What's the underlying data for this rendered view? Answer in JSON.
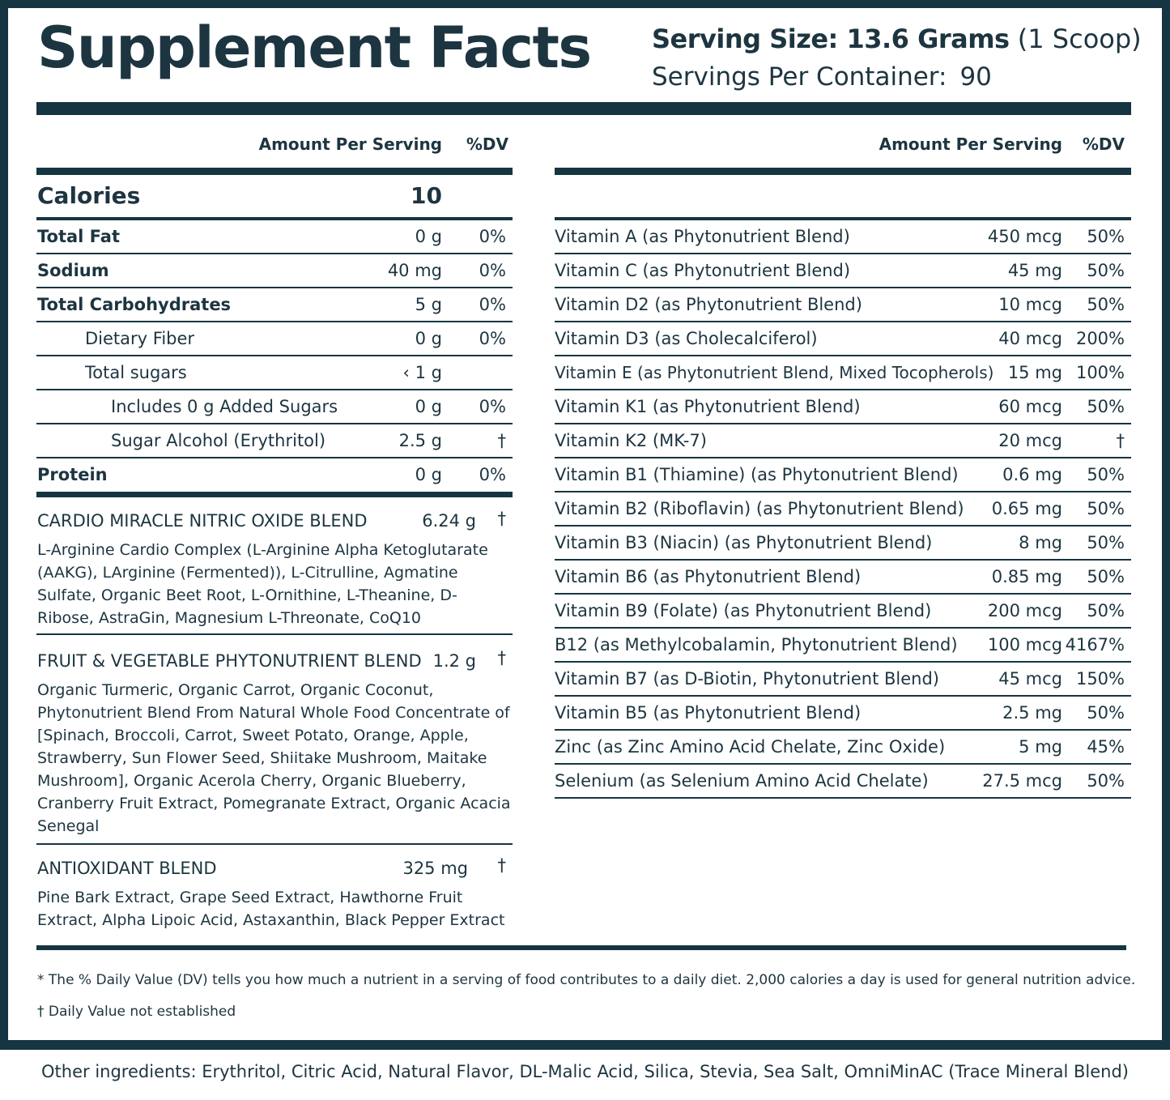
{
  "header": {
    "title": "Supplement Facts",
    "serving_size_label": "Serving Size: 13.6 Grams",
    "serving_size_note": "(1 Scoop)",
    "servings_label": "Servings Per Container:",
    "servings_value": "90"
  },
  "columns": {
    "amount": "Amount Per Serving",
    "dv": "%DV"
  },
  "calories": {
    "label": "Calories",
    "value": "10"
  },
  "left_rows": [
    {
      "name": "Total Fat",
      "amount": "0 g",
      "dv": "0%"
    },
    {
      "name": "Sodium",
      "amount": "40 mg",
      "dv": "0%"
    },
    {
      "name": "Total Carbohydrates",
      "amount": "5 g",
      "dv": "0%"
    },
    {
      "name": "Dietary Fiber",
      "amount": "0 g",
      "dv": "0%"
    },
    {
      "name": "Total sugars",
      "amount": "‹ 1 g",
      "dv": ""
    },
    {
      "name": "Includes 0 g Added Sugars",
      "amount": "0 g",
      "dv": "0%"
    },
    {
      "name": "Sugar Alcohol (Erythritol)",
      "amount": "2.5 g",
      "dv": "†"
    },
    {
      "name": "Protein",
      "amount": "0 g",
      "dv": "0%"
    }
  ],
  "blends": [
    {
      "name": "CARDIO MIRACLE NITRIC OXIDE BLEND",
      "amount": "6.24 g",
      "dv": "†",
      "ingredients": "L-Arginine Cardio Complex (L-Arginine Alpha Ketoglutarate (AAKG), LArginine (Fermented)), L-Citrulline, Agmatine Sulfate, Organic Beet Root, L-Ornithine, L-Theanine, D-Ribose, AstraGin, Magnesium L-Threonate, CoQ10"
    },
    {
      "name": "FRUIT & VEGETABLE PHYTONUTRIENT BLEND",
      "amount": "1.2 g",
      "dv": "†",
      "ingredients": "Organic Turmeric, Organic Carrot, Organic Coconut, Phytonutrient Blend From Natural Whole Food Concentrate of [Spinach, Broccoli, Carrot, Sweet Potato, Orange, Apple, Strawberry, Sun Flower Seed, Shiitake Mushroom, Maitake Mushroom], Organic Acerola Cherry, Organic Blueberry, Cranberry Fruit Extract, Pomegranate Extract, Organic Acacia Senegal"
    },
    {
      "name": "ANTIOXIDANT BLEND",
      "amount": "325 mg",
      "dv": "†",
      "ingredients": "Pine Bark Extract, Grape Seed Extract, Hawthorne Fruit Extract, Alpha Lipoic Acid, Astaxanthin, Black Pepper Extract"
    }
  ],
  "right_rows": [
    {
      "name": "Vitamin A (as Phytonutrient Blend)",
      "amount": "450 mcg",
      "dv": "50%"
    },
    {
      "name": "Vitamin C (as Phytonutrient Blend)",
      "amount": "45 mg",
      "dv": "50%"
    },
    {
      "name": "Vitamin D2 (as Phytonutrient Blend)",
      "amount": "10 mcg",
      "dv": "50%"
    },
    {
      "name": "Vitamin D3 (as Cholecalciferol)",
      "amount": "40 mcg",
      "dv": "200%"
    },
    {
      "name": "Vitamin E (as Phytonutrient Blend, Mixed Tocopherols)",
      "amount": "15 mg",
      "dv": "100%"
    },
    {
      "name": "Vitamin K1 (as Phytonutrient Blend)",
      "amount": "60 mcg",
      "dv": "50%"
    },
    {
      "name": "Vitamin K2 (MK-7)",
      "amount": "20 mcg",
      "dv": "†"
    },
    {
      "name": "Vitamin B1 (Thiamine) (as Phytonutrient Blend)",
      "amount": "0.6 mg",
      "dv": "50%"
    },
    {
      "name": "Vitamin B2 (Riboflavin) (as Phytonutrient Blend)",
      "amount": "0.65 mg",
      "dv": "50%"
    },
    {
      "name": "Vitamin B3 (Niacin) (as Phytonutrient Blend)",
      "amount": "8 mg",
      "dv": "50%"
    },
    {
      "name": "Vitamin B6 (as Phytonutrient Blend)",
      "amount": "0.85 mg",
      "dv": "50%"
    },
    {
      "name": "Vitamin B9 (Folate) (as Phytonutrient Blend)",
      "amount": "200 mcg",
      "dv": "50%"
    },
    {
      "name": "B12 (as Methylcobalamin, Phytonutrient Blend)",
      "amount": "100 mcg",
      "dv": "4167%"
    },
    {
      "name": "Vitamin B7 (as D-Biotin, Phytonutrient Blend)",
      "amount": "45 mcg",
      "dv": "150%"
    },
    {
      "name": "Vitamin B5 (as Phytonutrient Blend)",
      "amount": "2.5 mg",
      "dv": "50%"
    },
    {
      "name": "Zinc (as Zinc Amino Acid Chelate, Zinc Oxide)",
      "amount": "5 mg",
      "dv": "45%"
    },
    {
      "name": "Selenium (as Selenium Amino Acid Chelate)",
      "amount": "27.5 mcg",
      "dv": "50%"
    }
  ],
  "footnotes": {
    "dv_note": "* The % Daily Value (DV) tells you how much a nutrient in a serving of food contributes to a daily diet. 2,000 calories a day is used for general nutrition advice.",
    "dagger_note": "† Daily Value not established"
  },
  "other_ingredients": "Other ingredients: Erythritol, Citric Acid, Natural Flavor, DL-Malic Acid, Silica, Stevia, Sea Salt, OmniMinAC (Trace Mineral Blend)"
}
